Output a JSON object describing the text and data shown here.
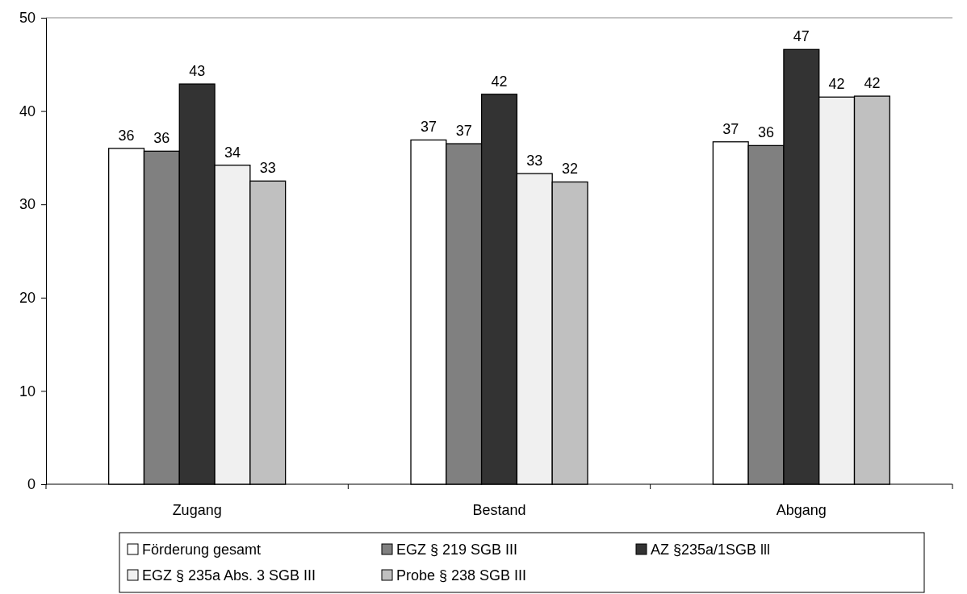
{
  "chart_data": {
    "type": "bar",
    "categories": [
      "Zugang",
      "Bestand",
      "Abgang"
    ],
    "series": [
      {
        "name": "Förderung gesamt",
        "color": "#ffffff",
        "values": [
          36.0,
          36.9,
          36.7
        ],
        "value_labels": [
          "36",
          "37",
          "37"
        ]
      },
      {
        "name": "EGZ § 219 SGB III",
        "color": "#808080",
        "values": [
          35.7,
          36.5,
          36.3
        ],
        "value_labels": [
          "36",
          "37",
          "36"
        ]
      },
      {
        "name": "AZ §235a/1SGB lll",
        "color": "#333333",
        "values": [
          42.9,
          41.8,
          46.6
        ],
        "value_labels": [
          "43",
          "42",
          "47"
        ]
      },
      {
        "name": "EGZ § 235a Abs. 3 SGB III",
        "color": "#f0f0f0",
        "values": [
          34.2,
          33.3,
          41.5
        ],
        "value_labels": [
          "34",
          "33",
          "42"
        ]
      },
      {
        "name": "Probe § 238 SGB III",
        "color": "#c0c0c0",
        "values": [
          32.5,
          32.4,
          41.6
        ],
        "value_labels": [
          "33",
          "32",
          "42"
        ]
      }
    ],
    "ylim": [
      0,
      50
    ],
    "yticks": [
      0,
      10,
      20,
      30,
      40,
      50
    ],
    "grid": false,
    "legend": "bottom"
  }
}
